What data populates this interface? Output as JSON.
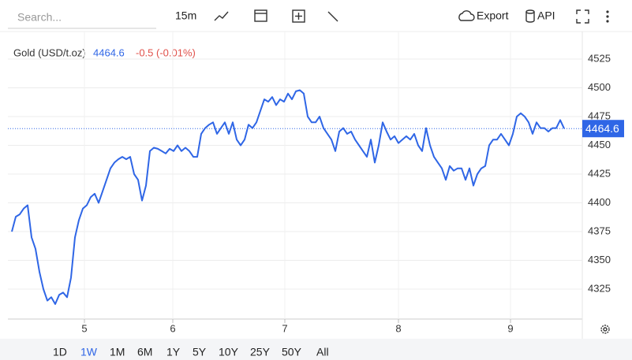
{
  "toolbar": {
    "search_placeholder": "Search...",
    "interval": "15m",
    "export": "Export",
    "api": "API"
  },
  "ranges": [
    "1D",
    "1W",
    "1M",
    "6M",
    "1Y",
    "5Y",
    "10Y",
    "25Y",
    "50Y",
    "All"
  ],
  "active_range_index": 1,
  "chart_data": {
    "type": "line",
    "series": [
      {
        "name": "Gold (USD/t.oz)",
        "color": "#2f66e6",
        "change": "-0.5 (-0.01%)",
        "values": [
          4375,
          4388,
          4390,
          4395,
          4398,
          4370,
          4360,
          4340,
          4325,
          4315,
          4318,
          4312,
          4320,
          4322,
          4318,
          4335,
          4370,
          4385,
          4395,
          4398,
          4405,
          4408,
          4400,
          4410,
          4420,
          4430,
          4435,
          4438,
          4440,
          4438,
          4440,
          4425,
          4420,
          4402,
          4415,
          4445,
          4448,
          4447,
          4445,
          4443,
          4447,
          4445,
          4450,
          4445,
          4448,
          4445,
          4440,
          4440,
          4460,
          4465,
          4468,
          4470,
          4460,
          4465,
          4470,
          4460,
          4470,
          4455,
          4450,
          4455,
          4468,
          4465,
          4470,
          4480,
          4490,
          4488,
          4492,
          4485,
          4490,
          4488,
          4495,
          4490,
          4497,
          4498,
          4495,
          4475,
          4470,
          4470,
          4475,
          4465,
          4460,
          4455,
          4445,
          4462,
          4465,
          4460,
          4462,
          4455,
          4450,
          4445,
          4440,
          4455,
          4435,
          4450,
          4470,
          4462,
          4455,
          4458,
          4452,
          4455,
          4458,
          4455,
          4460,
          4450,
          4445,
          4465,
          4450,
          4440,
          4435,
          4430,
          4420,
          4432,
          4428,
          4430,
          4430,
          4420,
          4430,
          4415,
          4425,
          4430,
          4432,
          4450,
          4455,
          4455,
          4460,
          4455,
          4450,
          4460,
          4475,
          4478,
          4475,
          4470,
          4460,
          4470,
          4465,
          4465,
          4462,
          4465,
          4465,
          4472,
          4464.6
        ]
      }
    ],
    "xlim": [
      0,
      145
    ],
    "xticks": [
      {
        "value": 18.4,
        "label": "5"
      },
      {
        "value": 40.8,
        "label": "6"
      },
      {
        "value": 69.2,
        "label": "7"
      },
      {
        "value": 98,
        "label": "8"
      },
      {
        "value": 126.4,
        "label": "9"
      }
    ],
    "ylim": [
      4299,
      4549
    ],
    "yticks": [
      4325,
      4350,
      4375,
      4400,
      4425,
      4450,
      4475,
      4500,
      4525
    ],
    "grid": true
  }
}
